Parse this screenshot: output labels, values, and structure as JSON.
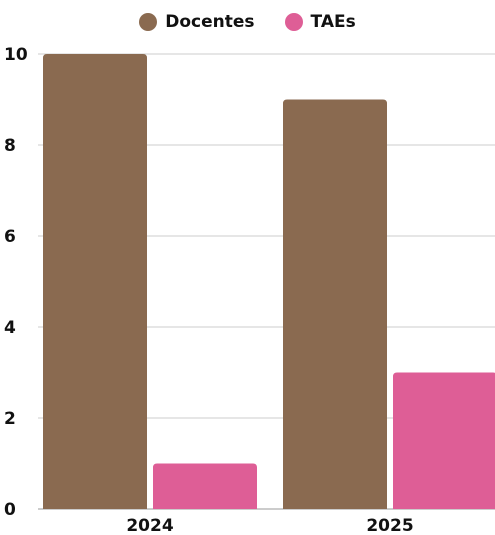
{
  "chart_data": {
    "type": "bar",
    "categories": [
      "2024",
      "2025"
    ],
    "series": [
      {
        "name": "Docentes",
        "values": [
          10,
          9
        ],
        "color": "#8a6a50"
      },
      {
        "name": "TAEs",
        "values": [
          1,
          3
        ],
        "color": "#de5e96"
      }
    ],
    "title": "",
    "xlabel": "",
    "ylabel": "",
    "ylim": [
      0,
      10
    ],
    "yticks": [
      "0",
      "2",
      "4",
      "6",
      "8",
      "10"
    ],
    "grid": true,
    "legend_position": "top"
  }
}
